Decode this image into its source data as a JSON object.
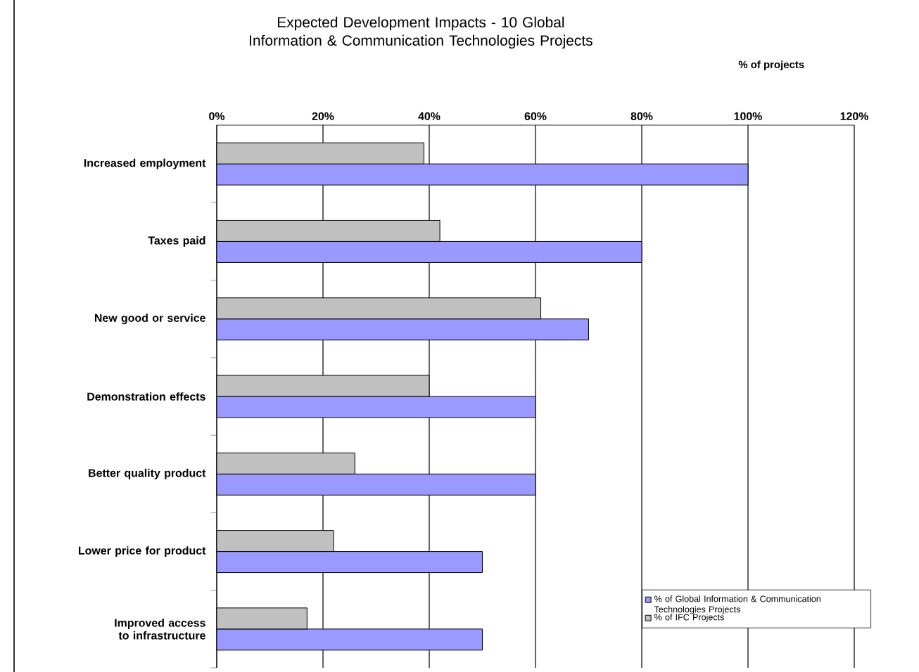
{
  "chart_data": {
    "type": "bar",
    "orientation": "horizontal",
    "title": "Expected Development Impacts - 10 Global Information & Communication Technologies Projects",
    "xlabel": "% of projects",
    "categories": [
      "Increased employment",
      "Taxes paid",
      "New good or service",
      "Demonstration effects",
      "Better quality product",
      "Lower price for product",
      "Improved access to infrastructure"
    ],
    "series": [
      {
        "name": "% of Global Information & Communication Technologies Projects",
        "color": "#9999ff",
        "values": [
          100,
          80,
          70,
          60,
          60,
          50,
          50
        ]
      },
      {
        "name": "% of IFC Projects",
        "color": "#c0c0c0",
        "values": [
          39,
          42,
          61,
          40,
          26,
          22,
          17
        ]
      }
    ],
    "xlim": [
      0,
      120
    ],
    "xticks": [
      {
        "value": 0,
        "label": "0%"
      },
      {
        "value": 20,
        "label": "20%"
      },
      {
        "value": 40,
        "label": "40%"
      },
      {
        "value": 60,
        "label": "60%"
      },
      {
        "value": 80,
        "label": "80%"
      },
      {
        "value": 100,
        "label": "100%"
      },
      {
        "value": 120,
        "label": "120%"
      }
    ],
    "grid": "x",
    "legend": "bottom right"
  }
}
